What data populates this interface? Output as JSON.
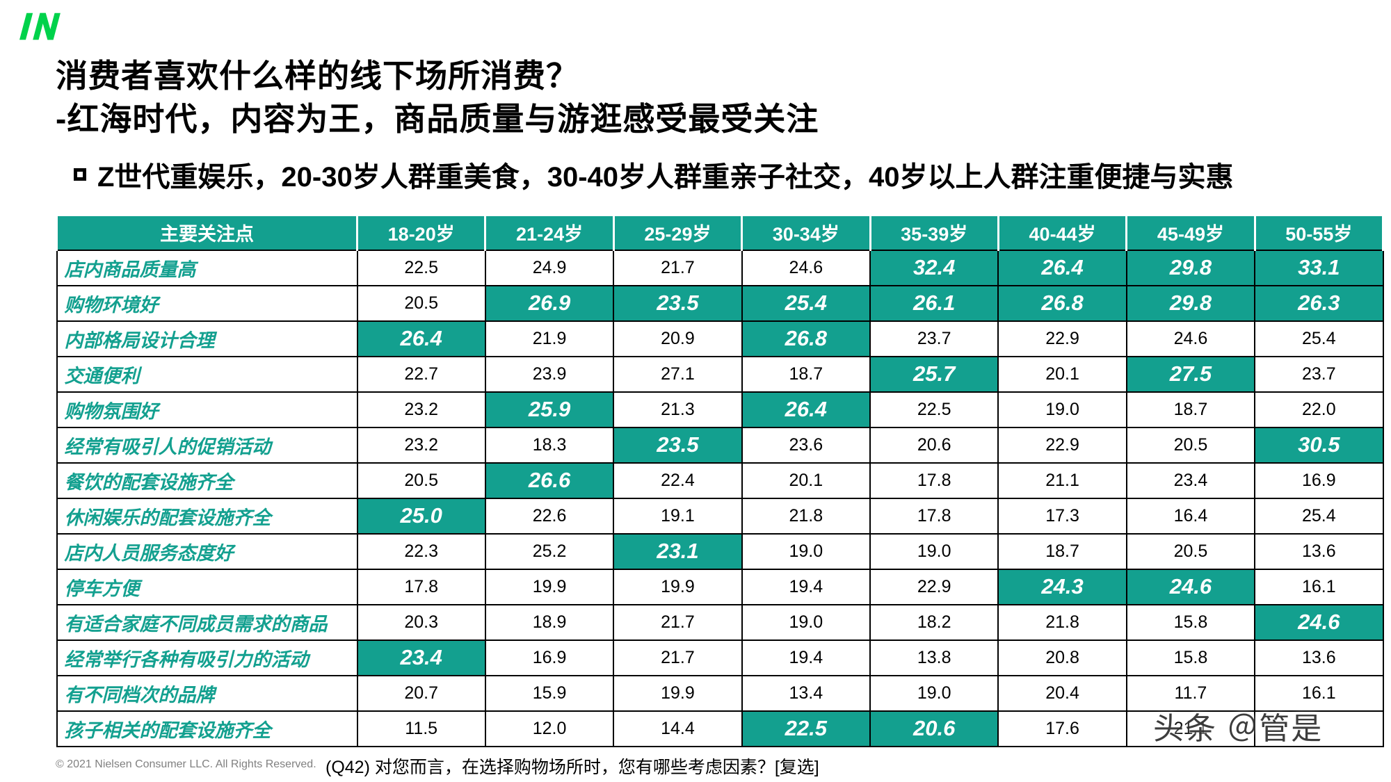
{
  "colors": {
    "accent_teal": "#13A08F",
    "logo_green": "#00D24B"
  },
  "header": {
    "title_line1": "消费者喜欢什么样的线下场所消费？",
    "title_line2": "-红海时代，内容为王，商品质量与游逛感受最受关注",
    "bullet_text": "Z世代重娱乐，20-30岁人群重美食，30-40岁人群重亲子社交，40岁以上人群注重便捷与实惠"
  },
  "table": {
    "columns": [
      "主要关注点",
      "18-20岁",
      "21-24岁",
      "25-29岁",
      "30-34岁",
      "35-39岁",
      "40-44岁",
      "45-49岁",
      "50-55岁"
    ],
    "rows": [
      {
        "label": "店内商品质量高",
        "values": [
          "22.5",
          "24.9",
          "21.7",
          "24.6",
          "32.4",
          "26.4",
          "29.8",
          "33.1"
        ],
        "highlights": [
          false,
          false,
          false,
          false,
          true,
          true,
          true,
          true
        ]
      },
      {
        "label": "购物环境好",
        "values": [
          "20.5",
          "26.9",
          "23.5",
          "25.4",
          "26.1",
          "26.8",
          "29.8",
          "26.3"
        ],
        "highlights": [
          false,
          true,
          true,
          true,
          true,
          true,
          true,
          true
        ]
      },
      {
        "label": "内部格局设计合理",
        "values": [
          "26.4",
          "21.9",
          "20.9",
          "26.8",
          "23.7",
          "22.9",
          "24.6",
          "25.4"
        ],
        "highlights": [
          true,
          false,
          false,
          true,
          false,
          false,
          false,
          false
        ]
      },
      {
        "label": "交通便利",
        "values": [
          "22.7",
          "23.9",
          "27.1",
          "18.7",
          "25.7",
          "20.1",
          "27.5",
          "23.7"
        ],
        "highlights": [
          false,
          false,
          false,
          false,
          true,
          false,
          true,
          false
        ]
      },
      {
        "label": "购物氛围好",
        "values": [
          "23.2",
          "25.9",
          "21.3",
          "26.4",
          "22.5",
          "19.0",
          "18.7",
          "22.0"
        ],
        "highlights": [
          false,
          true,
          false,
          true,
          false,
          false,
          false,
          false
        ]
      },
      {
        "label": "经常有吸引人的促销活动",
        "values": [
          "23.2",
          "18.3",
          "23.5",
          "23.6",
          "20.6",
          "22.9",
          "20.5",
          "30.5"
        ],
        "highlights": [
          false,
          false,
          true,
          false,
          false,
          false,
          false,
          true
        ]
      },
      {
        "label": "餐饮的配套设施齐全",
        "values": [
          "20.5",
          "26.6",
          "22.4",
          "20.1",
          "17.8",
          "21.1",
          "23.4",
          "16.9"
        ],
        "highlights": [
          false,
          true,
          false,
          false,
          false,
          false,
          false,
          false
        ]
      },
      {
        "label": "休闲娱乐的配套设施齐全",
        "values": [
          "25.0",
          "22.6",
          "19.1",
          "21.8",
          "17.8",
          "17.3",
          "16.4",
          "25.4"
        ],
        "highlights": [
          true,
          false,
          false,
          false,
          false,
          false,
          false,
          false
        ]
      },
      {
        "label": "店内人员服务态度好",
        "values": [
          "22.3",
          "25.2",
          "23.1",
          "19.0",
          "19.0",
          "18.7",
          "20.5",
          "13.6"
        ],
        "highlights": [
          false,
          false,
          true,
          false,
          false,
          false,
          false,
          false
        ]
      },
      {
        "label": "停车方便",
        "values": [
          "17.8",
          "19.9",
          "19.9",
          "19.4",
          "22.9",
          "24.3",
          "24.6",
          "16.1"
        ],
        "highlights": [
          false,
          false,
          false,
          false,
          false,
          true,
          true,
          false
        ]
      },
      {
        "label": "有适合家庭不同成员需求的商品",
        "values": [
          "20.3",
          "18.9",
          "21.7",
          "19.0",
          "18.2",
          "21.8",
          "15.8",
          "24.6"
        ],
        "highlights": [
          false,
          false,
          false,
          false,
          false,
          false,
          false,
          true
        ]
      },
      {
        "label": "经常举行各种有吸引力的活动",
        "values": [
          "23.4",
          "16.9",
          "21.7",
          "19.4",
          "13.8",
          "20.8",
          "15.8",
          "13.6"
        ],
        "highlights": [
          true,
          false,
          false,
          false,
          false,
          false,
          false,
          false
        ]
      },
      {
        "label": "有不同档次的品牌",
        "values": [
          "20.7",
          "15.9",
          "19.9",
          "13.4",
          "19.0",
          "20.4",
          "11.7",
          "16.1"
        ],
        "highlights": [
          false,
          false,
          false,
          false,
          false,
          false,
          false,
          false
        ]
      },
      {
        "label": "孩子相关的配套设施齐全",
        "values": [
          "11.5",
          "12.0",
          "14.4",
          "22.5",
          "20.6",
          "17.6",
          "21.1",
          ""
        ],
        "highlights": [
          false,
          false,
          false,
          true,
          true,
          false,
          false,
          false
        ]
      }
    ]
  },
  "footer": {
    "copyright": "© 2021 Nielsen Consumer LLC. All Rights Reserved.",
    "question": "(Q42) 对您而言，在选择购物场所时，您有哪些考虑因素？[复选]"
  },
  "watermark": "头条 ＠管是"
}
